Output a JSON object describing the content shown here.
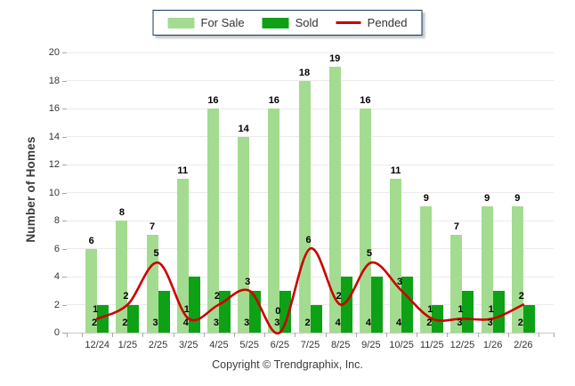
{
  "legend": {
    "items": [
      {
        "label": "For Sale",
        "color": "#A3DC90",
        "type": "swatch"
      },
      {
        "label": "Sold",
        "color": "#0EA116",
        "type": "swatch"
      },
      {
        "label": "Pended",
        "color": "#CC0000",
        "type": "line"
      }
    ]
  },
  "footer": {
    "copyright": "Copyright © Trendgraphix, Inc."
  },
  "chart_data": {
    "type": "bar",
    "title": "",
    "xlabel": "",
    "ylabel": "Number of Homes",
    "ylim": [
      0,
      20
    ],
    "ytick_step": 2,
    "grid": true,
    "legend_position": "top-center",
    "categories": [
      "12/24",
      "1/25",
      "2/25",
      "3/25",
      "4/25",
      "5/25",
      "6/25",
      "7/25",
      "8/25",
      "9/25",
      "10/25",
      "11/25",
      "12/25",
      "1/26",
      "2/26"
    ],
    "series": [
      {
        "name": "For Sale",
        "type": "bar",
        "color": "#A3DC90",
        "values": [
          6,
          8,
          7,
          11,
          16,
          14,
          16,
          18,
          19,
          16,
          11,
          9,
          7,
          9,
          9
        ]
      },
      {
        "name": "Sold",
        "type": "bar",
        "color": "#0EA116",
        "values": [
          2,
          2,
          3,
          4,
          3,
          3,
          3,
          2,
          4,
          4,
          4,
          2,
          3,
          3,
          2
        ]
      },
      {
        "name": "Pended",
        "type": "line",
        "color": "#CC0000",
        "values": [
          1,
          2,
          5,
          1,
          2,
          3,
          0,
          6,
          2,
          5,
          3,
          1,
          1,
          1,
          2
        ]
      }
    ]
  }
}
